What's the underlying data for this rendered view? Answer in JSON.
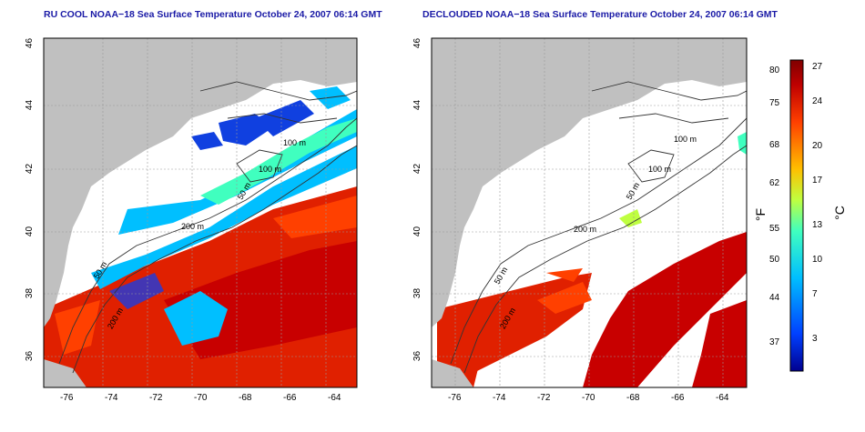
{
  "panels": [
    {
      "title": "RU COOL NOAA−18 Sea Surface Temperature October 24, 2007 06:14 GMT"
    },
    {
      "title": "DECLOUDED NOAA−18 Sea Surface Temperature October 24, 2007 06:14 GMT"
    }
  ],
  "axes": {
    "lon_ticks": [
      "-76",
      "-74",
      "-72",
      "-70",
      "-68",
      "-66",
      "-64"
    ],
    "lat_ticks": [
      "46",
      "44",
      "42",
      "40",
      "38",
      "36"
    ]
  },
  "contours": {
    "c100": "100 m",
    "c50": "50 m",
    "c200": "200 m"
  },
  "colorbar": {
    "fahrenheit_ticks": [
      "80",
      "75",
      "68",
      "62",
      "55",
      "50",
      "44",
      "37"
    ],
    "celsius_ticks": [
      "27",
      "24",
      "20",
      "17",
      "13",
      "10",
      "7",
      "3"
    ],
    "unit_f": "°F",
    "unit_c": "°C",
    "colors": [
      "#00008f",
      "#0040ff",
      "#00bfff",
      "#40ffbf",
      "#bfff40",
      "#ffbf00",
      "#ff4000",
      "#bf0000",
      "#800000"
    ]
  },
  "colors": {
    "land": "#c0c0c0",
    "cloud": "#ffffff",
    "warm": "#e02000",
    "deep": "#c80000",
    "cool": "#00bfff",
    "cold": "#1040e0"
  }
}
